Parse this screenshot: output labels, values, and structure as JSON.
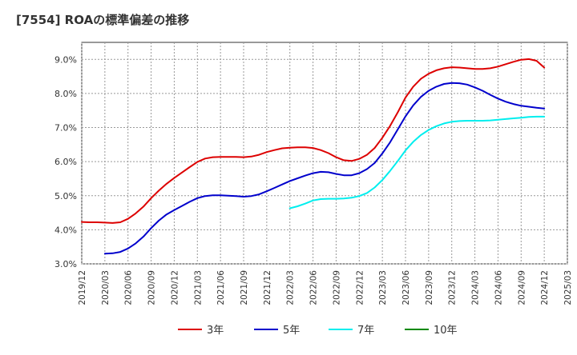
{
  "chart_data": {
    "type": "line",
    "title": "[7554]  ROAの標準偏差の推移",
    "xlabel": "",
    "ylabel": "",
    "ylim": [
      3.0,
      9.5
    ],
    "y_ticks": [
      "3.0%",
      "4.0%",
      "5.0%",
      "6.0%",
      "7.0%",
      "8.0%",
      "9.0%"
    ],
    "y_tick_values": [
      3.0,
      4.0,
      5.0,
      6.0,
      7.0,
      8.0,
      9.0
    ],
    "x_ticks": [
      "2019/12",
      "2020/03",
      "2020/06",
      "2020/09",
      "2020/12",
      "2021/03",
      "2021/06",
      "2021/09",
      "2021/12",
      "2022/03",
      "2022/06",
      "2022/09",
      "2022/12",
      "2023/03",
      "2023/06",
      "2023/09",
      "2023/12",
      "2024/03",
      "2024/06",
      "2024/09",
      "2024/12",
      "2025/03"
    ],
    "x_range": [
      "2019/12",
      "2025/03"
    ],
    "grid": true,
    "legend_position": "bottom",
    "series": [
      {
        "name": "3年",
        "color": "#dd0000",
        "points": [
          [
            "2019/12",
            4.23
          ],
          [
            "2020/01",
            4.22
          ],
          [
            "2020/02",
            4.22
          ],
          [
            "2020/03",
            4.21
          ],
          [
            "2020/04",
            4.2
          ],
          [
            "2020/05",
            4.22
          ],
          [
            "2020/06",
            4.32
          ],
          [
            "2020/07",
            4.48
          ],
          [
            "2020/08",
            4.68
          ],
          [
            "2020/09",
            4.93
          ],
          [
            "2020/10",
            5.15
          ],
          [
            "2020/11",
            5.35
          ],
          [
            "2020/12",
            5.52
          ],
          [
            "2021/01",
            5.68
          ],
          [
            "2021/02",
            5.84
          ],
          [
            "2021/03",
            5.99
          ],
          [
            "2021/04",
            6.09
          ],
          [
            "2021/05",
            6.13
          ],
          [
            "2021/06",
            6.14
          ],
          [
            "2021/07",
            6.14
          ],
          [
            "2021/08",
            6.14
          ],
          [
            "2021/09",
            6.13
          ],
          [
            "2021/10",
            6.15
          ],
          [
            "2021/11",
            6.2
          ],
          [
            "2021/12",
            6.28
          ],
          [
            "2022/01",
            6.34
          ],
          [
            "2022/02",
            6.39
          ],
          [
            "2022/03",
            6.41
          ],
          [
            "2022/04",
            6.42
          ],
          [
            "2022/05",
            6.42
          ],
          [
            "2022/06",
            6.4
          ],
          [
            "2022/07",
            6.34
          ],
          [
            "2022/08",
            6.25
          ],
          [
            "2022/09",
            6.13
          ],
          [
            "2022/10",
            6.04
          ],
          [
            "2022/11",
            6.02
          ],
          [
            "2022/12",
            6.08
          ],
          [
            "2023/01",
            6.2
          ],
          [
            "2023/02",
            6.4
          ],
          [
            "2023/03",
            6.7
          ],
          [
            "2023/04",
            7.05
          ],
          [
            "2023/05",
            7.45
          ],
          [
            "2023/06",
            7.88
          ],
          [
            "2023/07",
            8.2
          ],
          [
            "2023/08",
            8.43
          ],
          [
            "2023/09",
            8.58
          ],
          [
            "2023/10",
            8.68
          ],
          [
            "2023/11",
            8.74
          ],
          [
            "2023/12",
            8.77
          ],
          [
            "2024/01",
            8.76
          ],
          [
            "2024/02",
            8.74
          ],
          [
            "2024/03",
            8.72
          ],
          [
            "2024/04",
            8.72
          ],
          [
            "2024/05",
            8.74
          ],
          [
            "2024/06",
            8.79
          ],
          [
            "2024/07",
            8.86
          ],
          [
            "2024/08",
            8.93
          ],
          [
            "2024/09",
            8.99
          ],
          [
            "2024/10",
            9.01
          ],
          [
            "2024/11",
            8.96
          ],
          [
            "2024/12",
            8.76
          ]
        ]
      },
      {
        "name": "5年",
        "color": "#0000cc",
        "points": [
          [
            "2020/03",
            3.3
          ],
          [
            "2020/04",
            3.31
          ],
          [
            "2020/05",
            3.35
          ],
          [
            "2020/06",
            3.45
          ],
          [
            "2020/07",
            3.6
          ],
          [
            "2020/08",
            3.8
          ],
          [
            "2020/09",
            4.05
          ],
          [
            "2020/10",
            4.27
          ],
          [
            "2020/11",
            4.45
          ],
          [
            "2020/12",
            4.58
          ],
          [
            "2021/01",
            4.7
          ],
          [
            "2021/02",
            4.82
          ],
          [
            "2021/03",
            4.93
          ],
          [
            "2021/04",
            4.99
          ],
          [
            "2021/05",
            5.01
          ],
          [
            "2021/06",
            5.01
          ],
          [
            "2021/07",
            5.0
          ],
          [
            "2021/08",
            4.99
          ],
          [
            "2021/09",
            4.97
          ],
          [
            "2021/10",
            4.99
          ],
          [
            "2021/11",
            5.04
          ],
          [
            "2021/12",
            5.13
          ],
          [
            "2022/01",
            5.23
          ],
          [
            "2022/02",
            5.33
          ],
          [
            "2022/03",
            5.43
          ],
          [
            "2022/04",
            5.51
          ],
          [
            "2022/05",
            5.59
          ],
          [
            "2022/06",
            5.66
          ],
          [
            "2022/07",
            5.7
          ],
          [
            "2022/08",
            5.69
          ],
          [
            "2022/09",
            5.64
          ],
          [
            "2022/10",
            5.6
          ],
          [
            "2022/11",
            5.6
          ],
          [
            "2022/12",
            5.66
          ],
          [
            "2023/01",
            5.78
          ],
          [
            "2023/02",
            5.96
          ],
          [
            "2023/03",
            6.24
          ],
          [
            "2023/04",
            6.57
          ],
          [
            "2023/05",
            6.95
          ],
          [
            "2023/06",
            7.33
          ],
          [
            "2023/07",
            7.65
          ],
          [
            "2023/08",
            7.9
          ],
          [
            "2023/09",
            8.08
          ],
          [
            "2023/10",
            8.2
          ],
          [
            "2023/11",
            8.28
          ],
          [
            "2023/12",
            8.31
          ],
          [
            "2024/01",
            8.3
          ],
          [
            "2024/02",
            8.26
          ],
          [
            "2024/03",
            8.18
          ],
          [
            "2024/04",
            8.08
          ],
          [
            "2024/05",
            7.96
          ],
          [
            "2024/06",
            7.85
          ],
          [
            "2024/07",
            7.76
          ],
          [
            "2024/08",
            7.69
          ],
          [
            "2024/09",
            7.64
          ],
          [
            "2024/10",
            7.61
          ],
          [
            "2024/11",
            7.58
          ],
          [
            "2024/12",
            7.56
          ]
        ]
      },
      {
        "name": "7年",
        "color": "#00eeee",
        "points": [
          [
            "2022/03",
            4.63
          ],
          [
            "2022/04",
            4.69
          ],
          [
            "2022/05",
            4.77
          ],
          [
            "2022/06",
            4.86
          ],
          [
            "2022/07",
            4.9
          ],
          [
            "2022/08",
            4.91
          ],
          [
            "2022/09",
            4.91
          ],
          [
            "2022/10",
            4.92
          ],
          [
            "2022/11",
            4.94
          ],
          [
            "2022/12",
            4.99
          ],
          [
            "2023/01",
            5.08
          ],
          [
            "2023/02",
            5.24
          ],
          [
            "2023/03",
            5.46
          ],
          [
            "2023/04",
            5.73
          ],
          [
            "2023/05",
            6.02
          ],
          [
            "2023/06",
            6.33
          ],
          [
            "2023/07",
            6.58
          ],
          [
            "2023/08",
            6.78
          ],
          [
            "2023/09",
            6.93
          ],
          [
            "2023/10",
            7.04
          ],
          [
            "2023/11",
            7.12
          ],
          [
            "2023/12",
            7.17
          ],
          [
            "2024/01",
            7.19
          ],
          [
            "2024/02",
            7.2
          ],
          [
            "2024/03",
            7.2
          ],
          [
            "2024/04",
            7.2
          ],
          [
            "2024/05",
            7.21
          ],
          [
            "2024/06",
            7.23
          ],
          [
            "2024/07",
            7.25
          ],
          [
            "2024/08",
            7.27
          ],
          [
            "2024/09",
            7.29
          ],
          [
            "2024/10",
            7.31
          ],
          [
            "2024/11",
            7.32
          ],
          [
            "2024/12",
            7.32
          ]
        ]
      },
      {
        "name": "10年",
        "color": "#008800",
        "points": []
      }
    ]
  }
}
